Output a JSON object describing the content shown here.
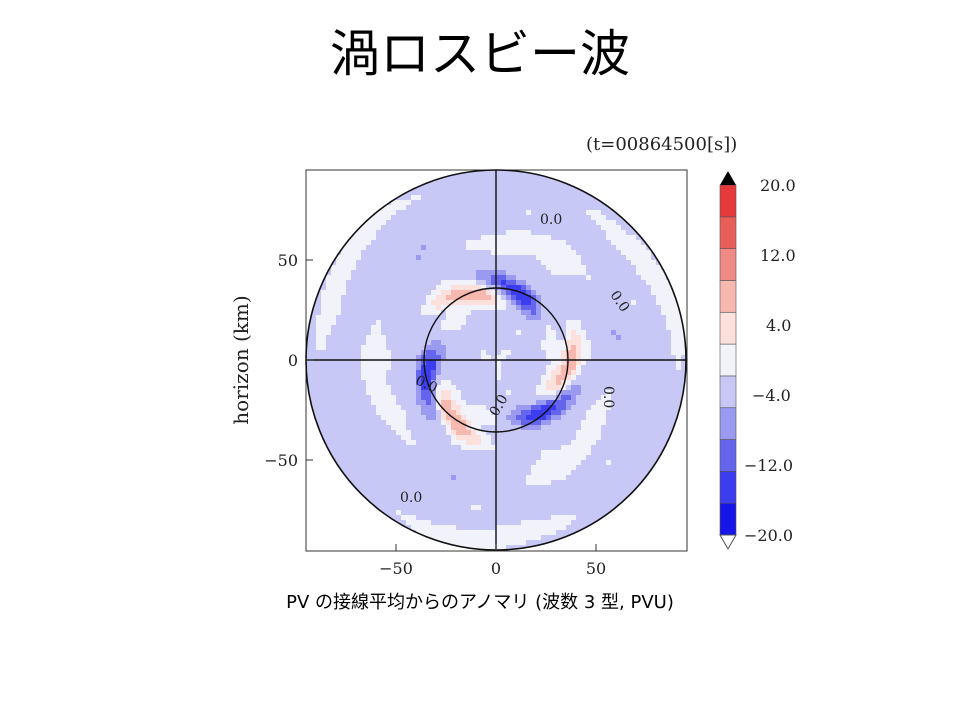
{
  "slide": {
    "title": "渦ロスビー波",
    "caption": "PV の接線平均からのアノマリ (波数 3 型, PVU)"
  },
  "chart_data": {
    "type": "heatmap",
    "time_label": "(t=00864500[s])",
    "ylabel": "horizon (km)",
    "xlabel": "",
    "xlim": [
      -95,
      95
    ],
    "ylim": [
      -95,
      95
    ],
    "x_ticks": [
      "−50",
      "0",
      "50"
    ],
    "y_ticks": [
      "50",
      "0",
      "−50"
    ],
    "contour_labels": [
      "0.0",
      "0.0",
      "0.0",
      "0.0",
      "0.0",
      "0.0"
    ],
    "colorbar": {
      "tick_labels": [
        "20.0",
        "12.0",
        "4.0",
        "−4.0",
        "−12.0",
        "−20.0"
      ],
      "levels": [
        -20,
        -16,
        -12,
        -8,
        -4,
        0,
        4,
        8,
        12,
        16,
        20
      ],
      "colors": [
        "#1616e8",
        "#3d3df0",
        "#6464ec",
        "#9a9af0",
        "#c8c8f6",
        "#f2f2fb",
        "#fbe0dc",
        "#f7b8b0",
        "#f08a84",
        "#e85e58",
        "#e63a3a"
      ],
      "extend_low_color": "#ffffff",
      "extend_high_color": "#000000"
    },
    "field": {
      "domain_radius_km": 95,
      "inner_circle_radius_km": 36,
      "wavenumber": 3,
      "outer_band_value": -4,
      "inner_positive_peak": 12,
      "inner_negative_peak": -14
    },
    "grid": false,
    "legend": "colorbar-right"
  }
}
